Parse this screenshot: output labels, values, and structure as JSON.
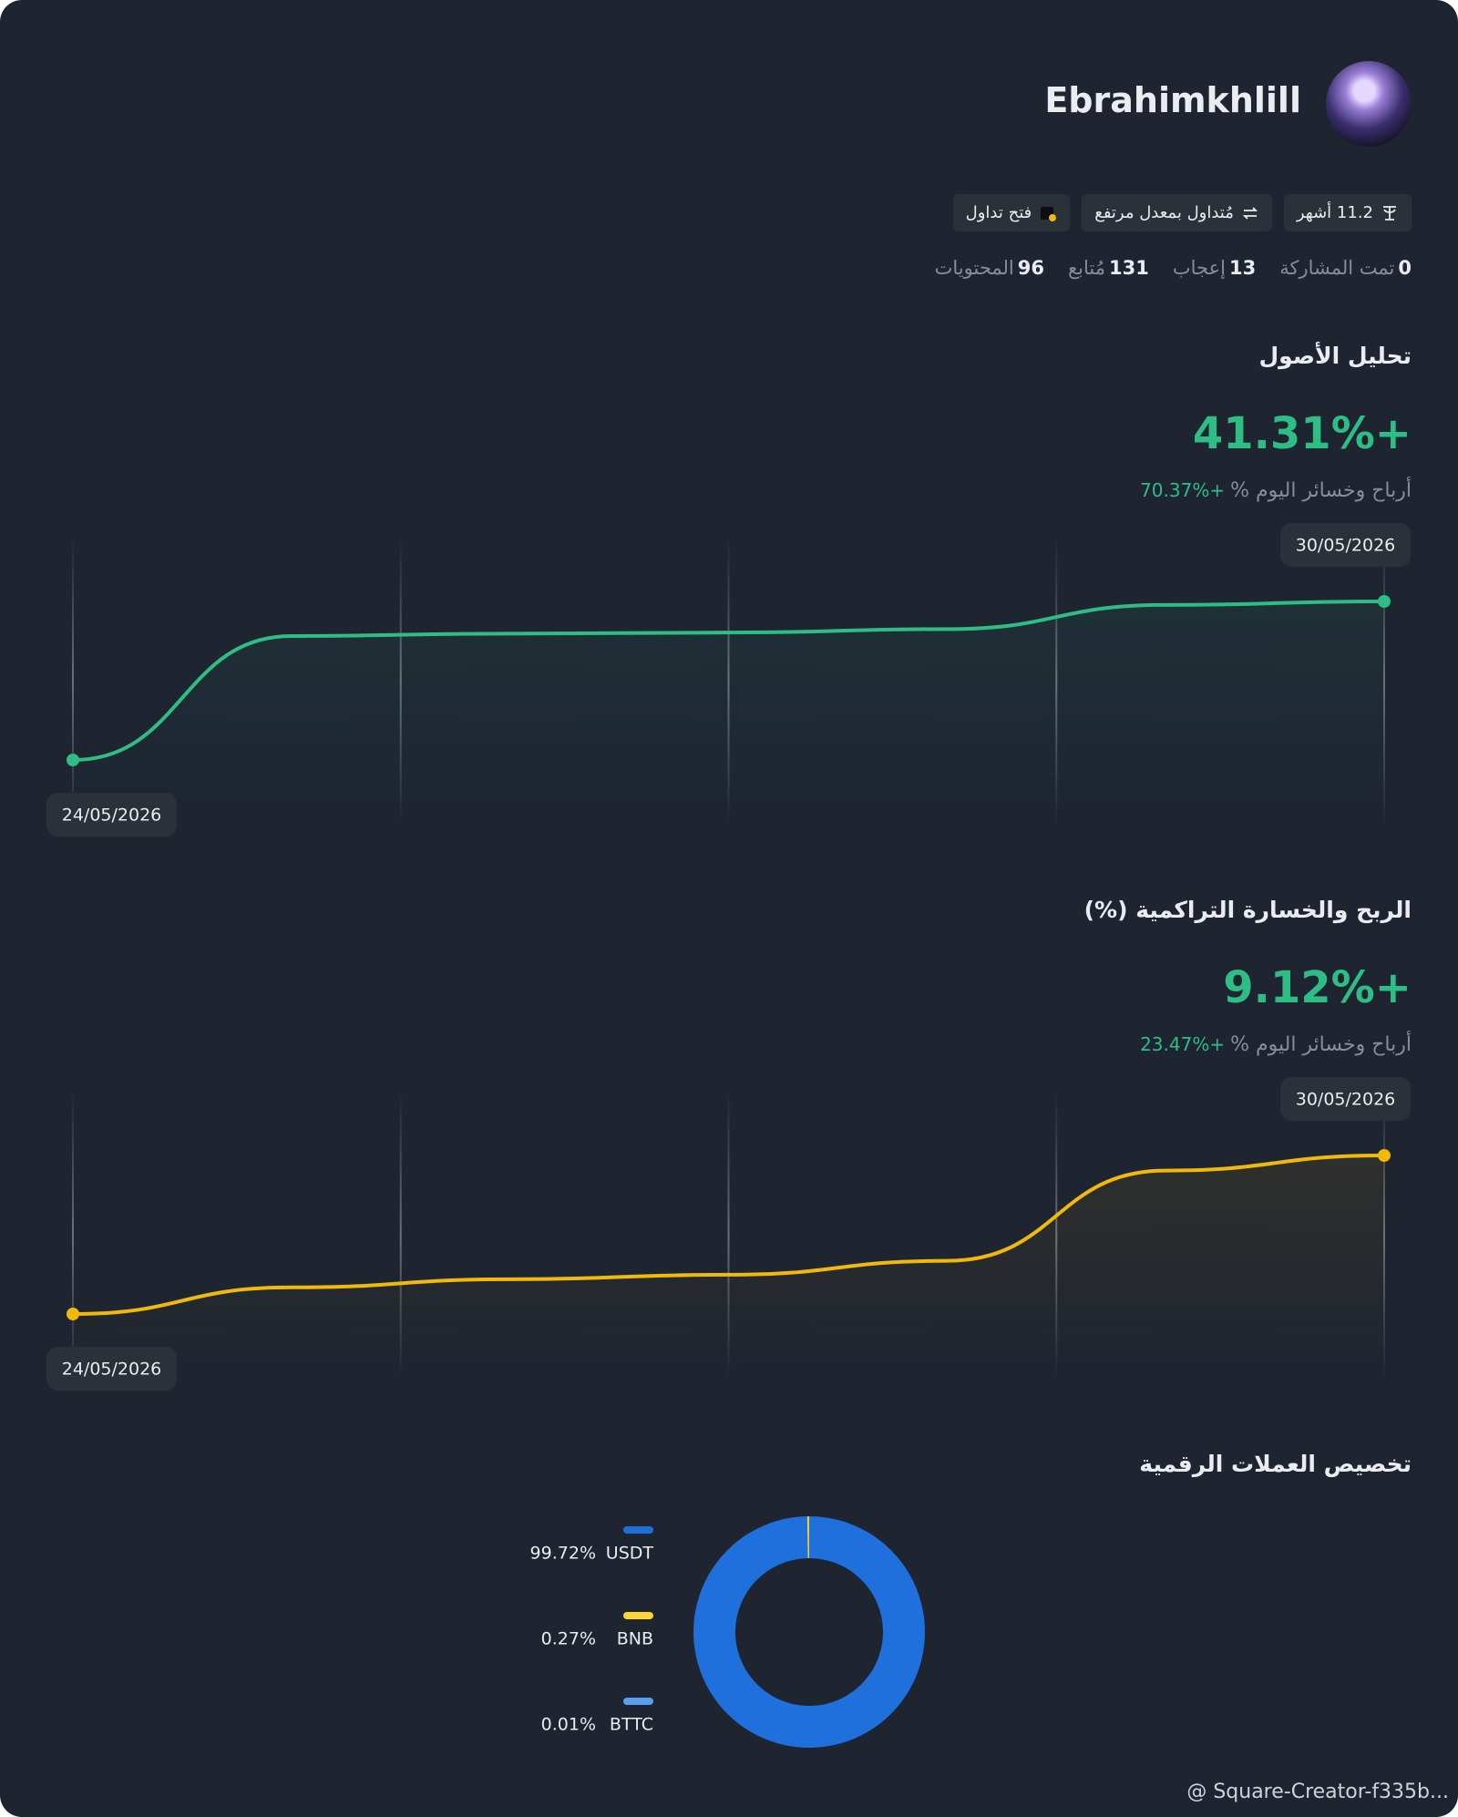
{
  "profile": {
    "name": "Ebrahimkhlill",
    "badges": [
      "11.2 أشهر",
      "مُتداول بمعدل مرتفع",
      "فتح تداول"
    ],
    "stats": [
      {
        "value": "0",
        "label": "تمت المشاركة"
      },
      {
        "value": "13",
        "label": "إعجاب"
      },
      {
        "value": "131",
        "label": "مُتابع"
      },
      {
        "value": "96",
        "label": "المحتويات"
      }
    ]
  },
  "chart_data": [
    {
      "type": "line",
      "title": "تحليل الأصول",
      "headline": "+41.31%",
      "subtitle": "أرباح وخسائر اليوم %",
      "today_change": "+70.37%",
      "categories": [
        "24/05/2026",
        null,
        null,
        null,
        null,
        null,
        "30/05/2026"
      ],
      "series": [
        {
          "color": "#2ebd85",
          "values": [
            0,
            32.3,
            32.9,
            33.2,
            34.1,
            40.4,
            41.31
          ]
        }
      ]
    },
    {
      "type": "line",
      "title": "الربح والخسارة التراكمية (%)",
      "headline": "+9.12%",
      "subtitle": "أرباح وخسائر اليوم %",
      "today_change": "+23.47%",
      "categories": [
        "24/05/2026",
        null,
        null,
        null,
        null,
        null,
        "30/05/2026"
      ],
      "series": [
        {
          "color": "#f0b90b",
          "values": [
            0,
            1.53,
            2.0,
            2.26,
            3.06,
            8.25,
            9.12
          ]
        }
      ]
    },
    {
      "type": "pie",
      "title": "تخصيص العملات الرقمية",
      "categories": [
        "USDT",
        "BNB",
        "BTTC"
      ],
      "values": [
        99.72,
        0.27,
        0.01
      ],
      "value_labels": [
        "99.72%",
        "0.27%",
        "0.01%"
      ],
      "colors": [
        "#1f6fdc",
        "#fcd535",
        "#5aa0f0"
      ]
    }
  ],
  "watermark": "@ Square-Creator-f335b..."
}
